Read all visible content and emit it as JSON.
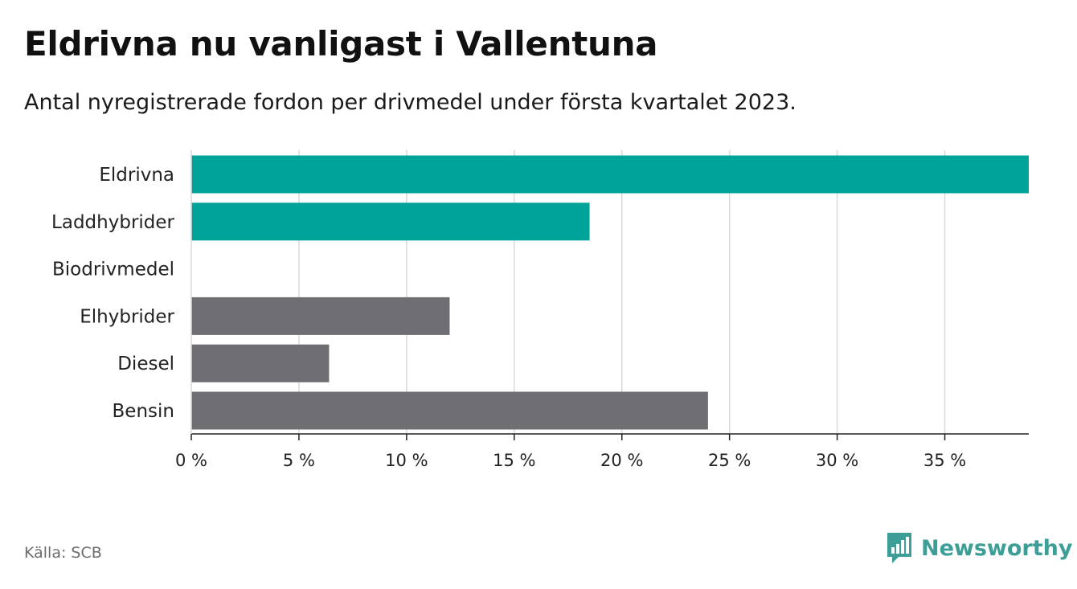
{
  "title": "Eldrivna nu vanligast i Vallentuna",
  "subtitle": "Antal nyregistrerade fordon per drivmedel under första kvartalet 2023.",
  "source": "Källa: SCB",
  "brand": {
    "name": "Newsworthy",
    "logo_icon": "bar-chart-icon",
    "color": "#3c9e96"
  },
  "colors": {
    "highlight": "#00a39a",
    "other": "#6f6e73",
    "grid": "#d9d9d9",
    "axis": "#222222"
  },
  "chart_data": {
    "type": "bar",
    "orientation": "horizontal",
    "categories": [
      "Eldrivna",
      "Laddhybrider",
      "Biodrivmedel",
      "Elhybrider",
      "Diesel",
      "Bensin"
    ],
    "values": [
      38.9,
      18.5,
      0,
      12.0,
      6.4,
      24.0
    ],
    "highlight": [
      true,
      true,
      false,
      false,
      false,
      false
    ],
    "xlim": [
      0,
      38.9
    ],
    "xticks": [
      0,
      5,
      10,
      15,
      20,
      25,
      30,
      35
    ],
    "xtick_labels": [
      "0 %",
      "5 %",
      "10 %",
      "15 %",
      "20 %",
      "25 %",
      "30 %",
      "35 %"
    ],
    "grid": true,
    "xlabel": "",
    "ylabel": ""
  }
}
